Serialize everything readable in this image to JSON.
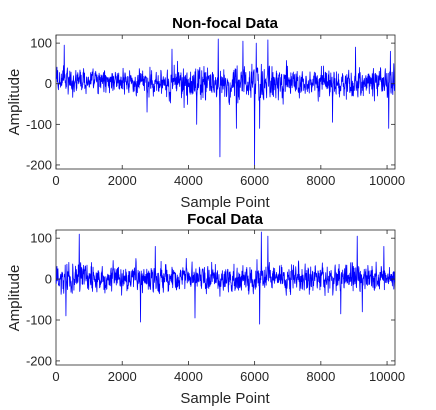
{
  "chart_data": [
    {
      "type": "line",
      "title": "Non-focal Data",
      "xlabel": "Sample Point",
      "ylabel": "Amplitude",
      "xlim": [
        0,
        10240
      ],
      "ylim": [
        -210,
        120
      ],
      "xticks": [
        0,
        2000,
        4000,
        6000,
        8000,
        10000
      ],
      "yticks": [
        100,
        0,
        -100,
        -200
      ],
      "grid": false,
      "color": "#0000ff",
      "n_samples": 10240,
      "amplitude_profile": [
        {
          "start": 0,
          "end": 3400,
          "range": [
            -70,
            80
          ]
        },
        {
          "start": 3400,
          "end": 7000,
          "range": [
            -110,
            110
          ]
        },
        {
          "start": 7000,
          "end": 10240,
          "range": [
            -90,
            90
          ]
        }
      ],
      "peaks": [
        {
          "x": 250,
          "y": 95
        },
        {
          "x": 3500,
          "y": 85
        },
        {
          "x": 4900,
          "y": 110
        },
        {
          "x": 5650,
          "y": 105
        },
        {
          "x": 6050,
          "y": 100
        },
        {
          "x": 6400,
          "y": 108
        },
        {
          "x": 9050,
          "y": 90
        },
        {
          "x": 10100,
          "y": 80
        },
        {
          "x": 2750,
          "y": -70
        },
        {
          "x": 4250,
          "y": -100
        },
        {
          "x": 4950,
          "y": -180
        },
        {
          "x": 5450,
          "y": -110
        },
        {
          "x": 6000,
          "y": -200
        },
        {
          "x": 6150,
          "y": -110
        },
        {
          "x": 8350,
          "y": -95
        },
        {
          "x": 10050,
          "y": -110
        }
      ]
    },
    {
      "type": "line",
      "title": "Focal Data",
      "xlabel": "Sample Point",
      "ylabel": "Amplitude",
      "xlim": [
        0,
        10240
      ],
      "ylim": [
        -210,
        120
      ],
      "xticks": [
        0,
        2000,
        4000,
        6000,
        8000,
        10000
      ],
      "yticks": [
        100,
        0,
        -100,
        -200
      ],
      "grid": false,
      "color": "#0000ff",
      "n_samples": 10240,
      "amplitude_profile": [
        {
          "start": 0,
          "end": 10240,
          "range": [
            -85,
            90
          ]
        }
      ],
      "peaks": [
        {
          "x": 700,
          "y": 110
        },
        {
          "x": 6200,
          "y": 115
        },
        {
          "x": 6400,
          "y": 105
        },
        {
          "x": 9100,
          "y": 105
        },
        {
          "x": 9900,
          "y": 80
        },
        {
          "x": 3000,
          "y": 80
        },
        {
          "x": 300,
          "y": -90
        },
        {
          "x": 2550,
          "y": -105
        },
        {
          "x": 4200,
          "y": -95
        },
        {
          "x": 6150,
          "y": -110
        },
        {
          "x": 8600,
          "y": -85
        },
        {
          "x": 9250,
          "y": -80
        }
      ]
    }
  ]
}
